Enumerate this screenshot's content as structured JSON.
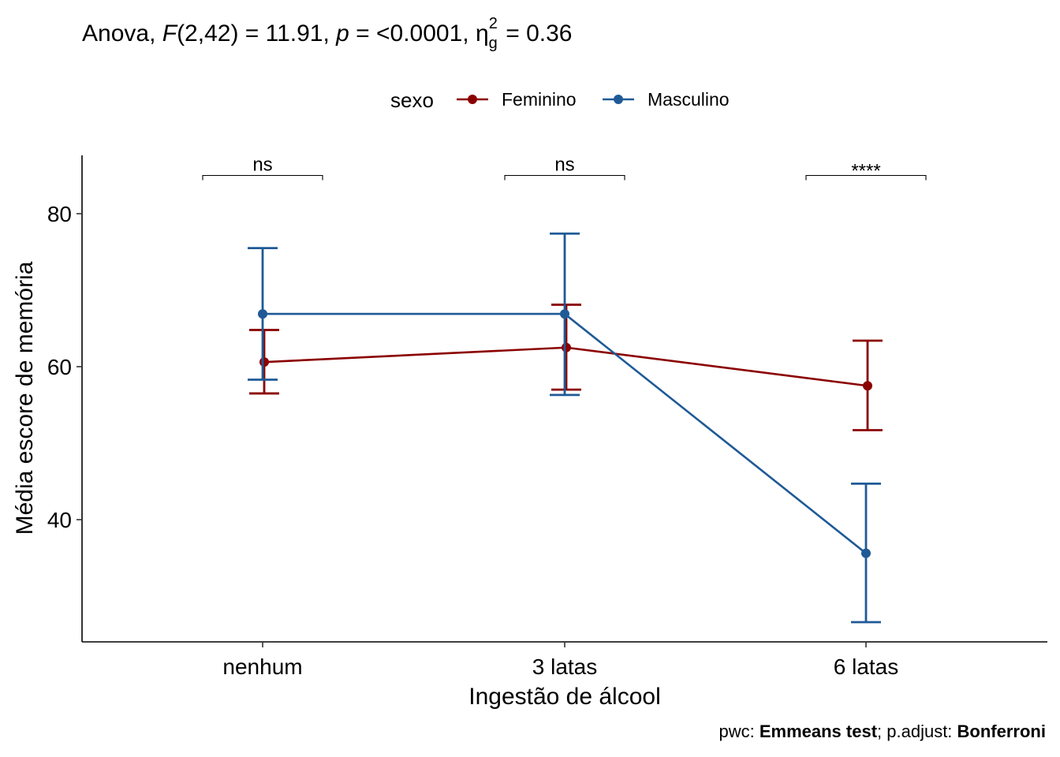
{
  "title": {
    "prefix": "Anova, ",
    "F_symbol": "F",
    "F_args": "(2,42) = 11.91, ",
    "p_symbol": "p",
    "p_text": " = <0.0001, ",
    "eta_symbol": "η",
    "eta_sub": "g",
    "eta_sup": "2",
    "eta_value": " = 0.36"
  },
  "legend": {
    "title": "sexo",
    "placement": "top"
  },
  "caption": {
    "pwc_label": "pwc: ",
    "pwc_value": "Emmeans test",
    "adjust_label": "; p.adjust: ",
    "adjust_value": "Bonferroni"
  },
  "colors": {
    "Feminino": "#8B0000",
    "Masculino": "#1F5A96"
  },
  "chart_data": {
    "type": "line",
    "xlabel": "Ingestão de álcool",
    "ylabel": "Média escore de memória",
    "categories": [
      "nenhum",
      "3 latas",
      "6 latas"
    ],
    "ylim": [
      23,
      88
    ],
    "yticks": [
      40,
      60,
      80
    ],
    "grid": false,
    "series": [
      {
        "name": "Feminino",
        "values": [
          60.6,
          62.5,
          57.5
        ],
        "lower": [
          56.5,
          57.0,
          51.7
        ],
        "upper": [
          64.8,
          68.1,
          63.4
        ]
      },
      {
        "name": "Masculino",
        "values": [
          66.9,
          66.9,
          35.6
        ],
        "lower": [
          58.3,
          56.3,
          26.6
        ],
        "upper": [
          75.5,
          77.4,
          44.7
        ]
      }
    ],
    "significance": [
      {
        "category": "nenhum",
        "label": "ns",
        "y": 85
      },
      {
        "category": "3 latas",
        "label": "ns",
        "y": 85
      },
      {
        "category": "6 latas",
        "label": "****",
        "y": 85
      }
    ]
  }
}
